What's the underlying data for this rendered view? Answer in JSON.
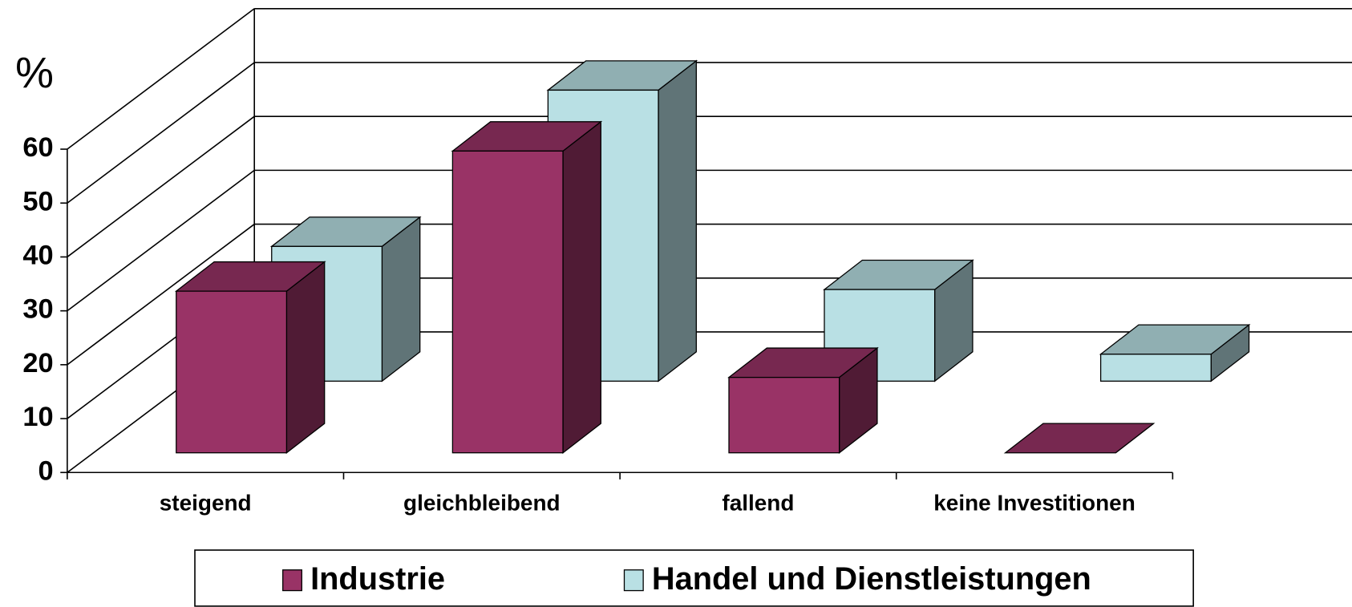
{
  "chart_data": {
    "type": "bar3d",
    "y_label": "%",
    "categories": [
      "steigend",
      "gleichbleibend",
      "fallend",
      "keine Investitionen"
    ],
    "series": [
      {
        "name": "Industrie",
        "color": "#993366",
        "values": [
          30,
          56,
          14,
          0
        ]
      },
      {
        "name": "Handel und Dienstleistungen",
        "color": "#b9e0e4",
        "values": [
          25,
          54,
          17,
          5
        ]
      }
    ],
    "ylim": [
      0,
      60
    ],
    "yticks": [
      0,
      10,
      20,
      30,
      40,
      50,
      60
    ],
    "grid": true,
    "legend": "bottom"
  }
}
